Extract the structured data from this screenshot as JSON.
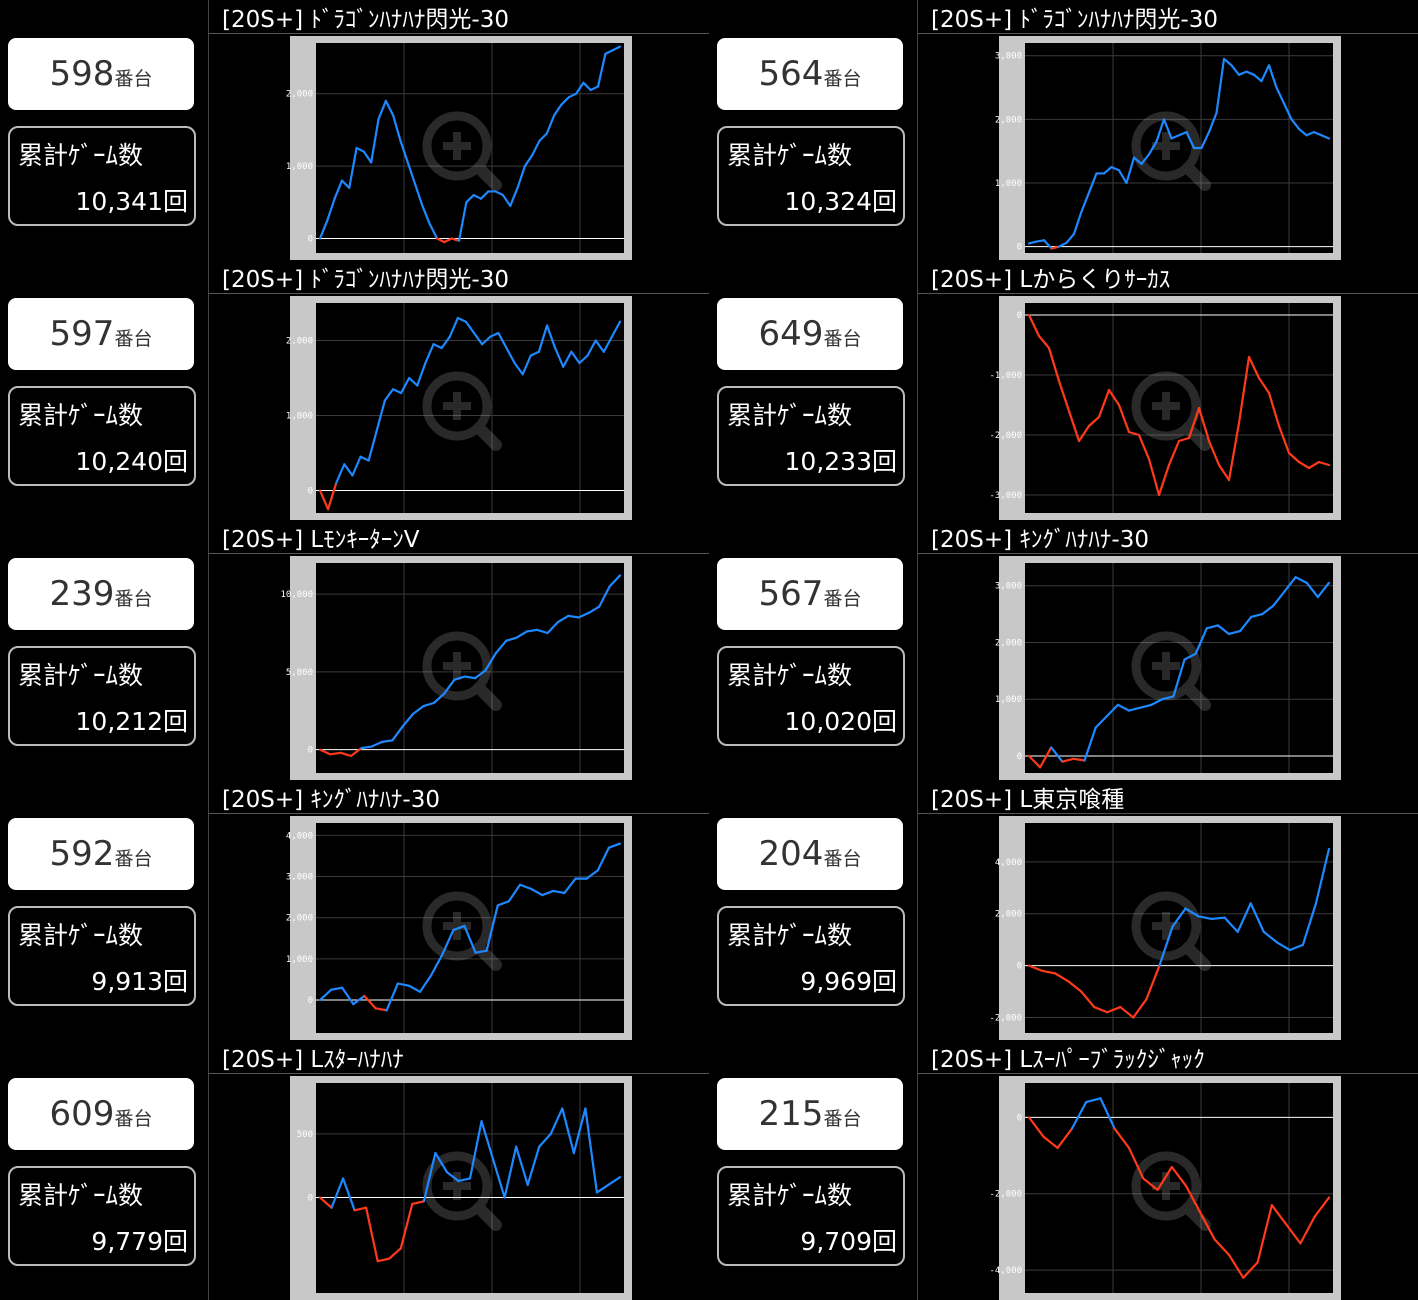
{
  "units": [
    {
      "machine_no": "598",
      "suffix": "番台",
      "games_label": "累計ｹﾞｰﾑ数",
      "games": "10,341回",
      "title": "[20S+] ﾄﾞﾗｺﾞﾝﾊﾅﾊﾅ閃光-30"
    },
    {
      "machine_no": "564",
      "suffix": "番台",
      "games_label": "累計ｹﾞｰﾑ数",
      "games": "10,324回",
      "title": "[20S+] ﾄﾞﾗｺﾞﾝﾊﾅﾊﾅ閃光-30"
    },
    {
      "machine_no": "597",
      "suffix": "番台",
      "games_label": "累計ｹﾞｰﾑ数",
      "games": "10,240回",
      "title": "[20S+] ﾄﾞﾗｺﾞﾝﾊﾅﾊﾅ閃光-30"
    },
    {
      "machine_no": "649",
      "suffix": "番台",
      "games_label": "累計ｹﾞｰﾑ数",
      "games": "10,233回",
      "title": "[20S+] Lからくりｻｰｶｽ"
    },
    {
      "machine_no": "239",
      "suffix": "番台",
      "games_label": "累計ｹﾞｰﾑ数",
      "games": "10,212回",
      "title": "[20S+] LﾓﾝｷｰﾀｰﾝV"
    },
    {
      "machine_no": "567",
      "suffix": "番台",
      "games_label": "累計ｹﾞｰﾑ数",
      "games": "10,020回",
      "title": "[20S+] ｷﾝｸﾞﾊﾅﾊﾅ-30"
    },
    {
      "machine_no": "592",
      "suffix": "番台",
      "games_label": "累計ｹﾞｰﾑ数",
      "games": "9,913回",
      "title": "[20S+] ｷﾝｸﾞﾊﾅﾊﾅ-30"
    },
    {
      "machine_no": "204",
      "suffix": "番台",
      "games_label": "累計ｹﾞｰﾑ数",
      "games": "9,969回",
      "title": "[20S+] L東京喰種"
    },
    {
      "machine_no": "609",
      "suffix": "番台",
      "games_label": "累計ｹﾞｰﾑ数",
      "games": "9,779回",
      "title": "[20S+] Lｽﾀｰﾊﾅﾊﾅ"
    },
    {
      "machine_no": "215",
      "suffix": "番台",
      "games_label": "累計ｹﾞｰﾑ数",
      "games": "9,709回",
      "title": "[20S+] Lｽｰﾊﾟｰﾌﾞﾗｯｸｼﾞｬｯｸ"
    }
  ],
  "colors": {
    "positive": "#1e88ff",
    "negative": "#ff3a1a",
    "frame": "#c8c8c8",
    "plot_bg": "#000000"
  },
  "icons": {
    "zoom": "zoom-in-icon"
  },
  "chart_data": [
    {
      "type": "line",
      "ylim": [
        -200,
        2700
      ],
      "yticks": [
        0,
        1000,
        2000
      ],
      "ytick_labels": [
        "0",
        "1,000",
        "2,000"
      ],
      "values": [
        0,
        250,
        550,
        800,
        700,
        1250,
        1200,
        1050,
        1650,
        1900,
        1700,
        1350,
        1050,
        750,
        450,
        200,
        0,
        -50,
        0,
        -30,
        500,
        600,
        550,
        650,
        650,
        600,
        450,
        700,
        1000,
        1150,
        1350,
        1450,
        1700,
        1850,
        1950,
        2000,
        2150,
        2050,
        2100,
        2550,
        2600,
        2650
      ]
    },
    {
      "type": "line",
      "ylim": [
        -100,
        3200
      ],
      "yticks": [
        0,
        1000,
        2000,
        3000
      ],
      "ytick_labels": [
        "0",
        "1,000",
        "2,000",
        "3,000"
      ],
      "values": [
        50,
        80,
        100,
        -30,
        0,
        60,
        200,
        550,
        850,
        1150,
        1150,
        1250,
        1200,
        1000,
        1400,
        1300,
        1450,
        1650,
        2000,
        1700,
        1750,
        1800,
        1550,
        1550,
        1800,
        2100,
        2950,
        2850,
        2700,
        2750,
        2700,
        2600,
        2850,
        2500,
        2250,
        2000,
        1850,
        1750,
        1800,
        1750,
        1700
      ]
    },
    {
      "type": "line",
      "ylim": [
        -300,
        2500
      ],
      "yticks": [
        0,
        1000,
        2000
      ],
      "ytick_labels": [
        "0",
        "1,000",
        "2,000"
      ],
      "values": [
        0,
        -250,
        100,
        350,
        200,
        450,
        400,
        800,
        1200,
        1350,
        1300,
        1500,
        1400,
        1700,
        1950,
        1900,
        2050,
        2300,
        2250,
        2100,
        1950,
        2050,
        2100,
        1900,
        1700,
        1550,
        1800,
        1850,
        2200,
        1900,
        1650,
        1850,
        1700,
        1800,
        2000,
        1850,
        2050,
        2250
      ]
    },
    {
      "type": "line",
      "ylim": [
        -3300,
        200
      ],
      "yticks": [
        0,
        -1000,
        -2000,
        -3000
      ],
      "ytick_labels": [
        "0",
        "-1,000",
        "-2,000",
        "-3,000"
      ],
      "values": [
        0,
        -350,
        -550,
        -1100,
        -1600,
        -2100,
        -1850,
        -1700,
        -1250,
        -1500,
        -1950,
        -2000,
        -2400,
        -3000,
        -2500,
        -2100,
        -2050,
        -1550,
        -2100,
        -2500,
        -2750,
        -1800,
        -700,
        -1050,
        -1300,
        -1850,
        -2300,
        -2450,
        -2550,
        -2450,
        -2500
      ]
    },
    {
      "type": "line",
      "ylim": [
        -1500,
        12000
      ],
      "yticks": [
        0,
        5000,
        10000
      ],
      "ytick_labels": [
        "0",
        "5,000",
        "10,000"
      ],
      "values": [
        0,
        -300,
        -200,
        -400,
        100,
        200,
        500,
        600,
        1500,
        2300,
        2800,
        3000,
        3600,
        4500,
        4700,
        4600,
        5100,
        6200,
        7000,
        7200,
        7600,
        7700,
        7500,
        8200,
        8600,
        8500,
        8800,
        9200,
        10500,
        11200
      ]
    },
    {
      "type": "line",
      "ylim": [
        -300,
        3400
      ],
      "yticks": [
        0,
        1000,
        2000,
        3000
      ],
      "ytick_labels": [
        "0",
        "1,000",
        "2,000",
        "3,000"
      ],
      "values": [
        0,
        -200,
        150,
        -100,
        -50,
        -80,
        500,
        700,
        900,
        800,
        850,
        900,
        1000,
        1050,
        1700,
        1800,
        2250,
        2300,
        2150,
        2200,
        2450,
        2500,
        2650,
        2900,
        3150,
        3050,
        2800,
        3050
      ]
    },
    {
      "type": "line",
      "ylim": [
        -800,
        4300
      ],
      "yticks": [
        0,
        1000,
        2000,
        3000,
        4000
      ],
      "ytick_labels": [
        "0",
        "1,000",
        "2,000",
        "3,000",
        "4,000"
      ],
      "values": [
        0,
        250,
        300,
        -100,
        100,
        -200,
        -250,
        400,
        350,
        200,
        600,
        1100,
        1700,
        1800,
        1150,
        1200,
        2300,
        2400,
        2800,
        2700,
        2550,
        2650,
        2600,
        2950,
        2950,
        3150,
        3700,
        3800
      ]
    },
    {
      "type": "line",
      "ylim": [
        -2600,
        5500
      ],
      "yticks": [
        -2000,
        0,
        2000,
        4000
      ],
      "ytick_labels": [
        "-2,000",
        "0",
        "2,000",
        "4,000"
      ],
      "values": [
        0,
        -200,
        -300,
        -600,
        -1000,
        -1600,
        -1800,
        -1600,
        -2000,
        -1300,
        0,
        1500,
        2200,
        1900,
        1800,
        1850,
        1300,
        2400,
        1300,
        900,
        600,
        800,
        2400,
        4500
      ]
    },
    {
      "type": "line",
      "ylim": [
        -750,
        900
      ],
      "yticks": [
        0,
        500
      ],
      "ytick_labels": [
        "0",
        "500"
      ],
      "values": [
        0,
        -80,
        150,
        -100,
        -80,
        -500,
        -480,
        -400,
        -50,
        -30,
        350,
        200,
        130,
        150,
        600,
        300,
        0,
        400,
        100,
        400,
        500,
        700,
        350,
        700,
        40,
        100,
        160
      ]
    },
    {
      "type": "line",
      "ylim": [
        -4600,
        900
      ],
      "yticks": [
        0,
        -2000,
        -4000
      ],
      "ytick_labels": [
        "0",
        "-2,000",
        "-4,000"
      ],
      "values": [
        0,
        -500,
        -800,
        -300,
        400,
        500,
        -300,
        -800,
        -1600,
        -1900,
        -1300,
        -1800,
        -2500,
        -3200,
        -3600,
        -4200,
        -3800,
        -2300,
        -2800,
        -3300,
        -2600,
        -2100
      ]
    }
  ]
}
